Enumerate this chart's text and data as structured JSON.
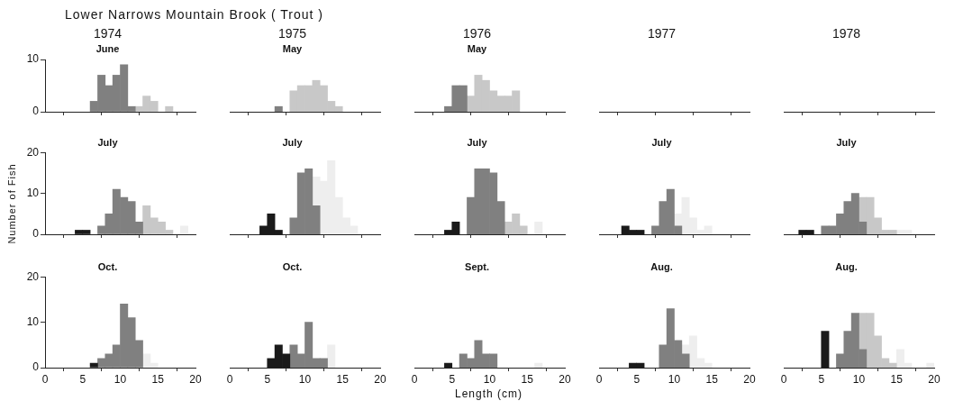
{
  "chart_data": [
    {
      "type": "bar",
      "title": "1974",
      "subtitle": "June",
      "annotations": [
        "Lower Narrows Mountain Brook ( Trout )"
      ],
      "x": [
        6.5,
        7.5,
        8.5,
        9.5,
        10.5,
        11.5,
        12.5,
        13.5,
        14.5,
        15.5,
        16.5
      ],
      "stacked": true,
      "xlim": [
        0,
        20
      ],
      "xticks": [
        0,
        5,
        10,
        15,
        20
      ],
      "ylim": [
        0,
        10
      ],
      "yticks": [
        0,
        10
      ],
      "tick_labels": "y",
      "series": [
        {
          "color": "#808080",
          "values": [
            2,
            7,
            5,
            7,
            9,
            1,
            null,
            null,
            null,
            null,
            null
          ]
        },
        {
          "color": "#c8c8c8",
          "values": [
            null,
            null,
            null,
            null,
            null,
            null,
            1,
            3,
            2,
            null,
            1
          ]
        }
      ]
    },
    {
      "type": "bar",
      "title": "1975",
      "subtitle": "May",
      "x": [
        6.5,
        7.5,
        8.5,
        9.5,
        10.5,
        11.5,
        12.5,
        13.5,
        14.5
      ],
      "stacked": true,
      "xlim": [
        0,
        20
      ],
      "xticks": [
        0,
        5,
        10,
        15,
        20
      ],
      "ylim": [
        0,
        10
      ],
      "tick_labels": false,
      "series": [
        {
          "color": "#808080",
          "values": [
            1,
            null,
            null,
            null,
            null,
            null,
            null,
            null,
            null
          ]
        },
        {
          "color": "#c8c8c8",
          "values": [
            null,
            null,
            4,
            5,
            5,
            6,
            5,
            2,
            1
          ]
        }
      ]
    },
    {
      "type": "bar",
      "title": "1976",
      "subtitle": "May",
      "x": [
        4.5,
        5.5,
        6.5,
        7.5,
        8.5,
        9.5,
        10.5,
        11.5,
        12.5,
        13.5
      ],
      "stacked": true,
      "xlim": [
        0,
        20
      ],
      "xticks": [
        0,
        5,
        10,
        15,
        20
      ],
      "ylim": [
        0,
        10
      ],
      "tick_labels": false,
      "series": [
        {
          "color": "#808080",
          "values": [
            1,
            5,
            5,
            null,
            null,
            null,
            null,
            null,
            null,
            null
          ]
        },
        {
          "color": "#c8c8c8",
          "values": [
            null,
            null,
            null,
            3,
            7,
            6,
            4,
            3,
            3,
            4
          ]
        }
      ]
    },
    {
      "type": "other",
      "title": "1977"
    },
    {
      "type": "other",
      "title": "1978"
    },
    {
      "type": "bar",
      "title": "July",
      "ylabel": "Number of Fish",
      "x": [
        4.5,
        5.5,
        6.5,
        7.5,
        8.5,
        9.5,
        10.5,
        11.5,
        12.5,
        13.5,
        14.5,
        15.5,
        16.5,
        17.5,
        18.5
      ],
      "stacked": true,
      "xlim": [
        0,
        20
      ],
      "xticks": [
        0,
        5,
        10,
        15,
        20
      ],
      "ylim": [
        0,
        20
      ],
      "yticks": [
        0,
        10,
        20
      ],
      "tick_labels": "y",
      "series": [
        {
          "color": "#1a1a1a",
          "values": [
            1,
            1,
            null,
            null,
            null,
            null,
            null,
            null,
            null,
            null,
            null,
            null,
            null,
            null,
            null
          ]
        },
        {
          "color": "#808080",
          "values": [
            null,
            null,
            null,
            2,
            5,
            11,
            9,
            8,
            3,
            null,
            null,
            null,
            null,
            null,
            null
          ]
        },
        {
          "color": "#c8c8c8",
          "values": [
            null,
            null,
            null,
            null,
            null,
            null,
            null,
            null,
            null,
            7,
            4,
            3,
            1,
            null,
            null
          ]
        },
        {
          "color": "#eeeeee",
          "values": [
            null,
            null,
            null,
            null,
            null,
            null,
            null,
            null,
            null,
            null,
            null,
            null,
            null,
            null,
            2
          ]
        }
      ]
    },
    {
      "type": "bar",
      "title": "July",
      "x": [
        4.5,
        5.5,
        6.5,
        7.5,
        8.5,
        9.5,
        10.5,
        11.5,
        12.5,
        13.5,
        14.5,
        15.5,
        16.5
      ],
      "stacked": true,
      "xlim": [
        0,
        20
      ],
      "xticks": [
        0,
        5,
        10,
        15,
        20
      ],
      "ylim": [
        0,
        20
      ],
      "tick_labels": false,
      "series": [
        {
          "color": "#1a1a1a",
          "values": [
            2,
            5,
            1,
            null,
            null,
            null,
            null,
            null,
            null,
            null,
            null,
            null,
            null
          ]
        },
        {
          "color": "#808080",
          "values": [
            null,
            null,
            null,
            null,
            4,
            15,
            16,
            7,
            null,
            null,
            null,
            null,
            null
          ]
        },
        {
          "color": "#eeeeee",
          "values": [
            null,
            null,
            null,
            null,
            null,
            null,
            null,
            7,
            13,
            18,
            9,
            4,
            2
          ]
        }
      ]
    },
    {
      "type": "bar",
      "title": "July",
      "x": [
        4.5,
        5.5,
        6.5,
        7.5,
        8.5,
        9.5,
        10.5,
        11.5,
        12.5,
        13.5,
        14.5,
        15.5,
        16.5
      ],
      "stacked": true,
      "xlim": [
        0,
        20
      ],
      "xticks": [
        0,
        5,
        10,
        15,
        20
      ],
      "ylim": [
        0,
        20
      ],
      "tick_labels": false,
      "series": [
        {
          "color": "#1a1a1a",
          "values": [
            1,
            3,
            null,
            null,
            null,
            null,
            null,
            null,
            null,
            null,
            null,
            null,
            null
          ]
        },
        {
          "color": "#808080",
          "values": [
            null,
            null,
            null,
            9,
            16,
            16,
            15,
            8,
            null,
            null,
            null,
            null,
            null
          ]
        },
        {
          "color": "#c8c8c8",
          "values": [
            null,
            null,
            null,
            null,
            null,
            null,
            null,
            null,
            3,
            5,
            2,
            null,
            null
          ]
        },
        {
          "color": "#eeeeee",
          "values": [
            null,
            null,
            null,
            null,
            null,
            null,
            null,
            null,
            null,
            null,
            null,
            null,
            3
          ]
        }
      ]
    },
    {
      "type": "bar",
      "title": "July",
      "x": [
        3.5,
        4.5,
        5.5,
        6.5,
        7.5,
        8.5,
        9.5,
        10.5,
        11.5,
        12.5,
        13.5,
        14.5
      ],
      "stacked": true,
      "xlim": [
        0,
        20
      ],
      "xticks": [
        0,
        5,
        10,
        15,
        20
      ],
      "ylim": [
        0,
        20
      ],
      "tick_labels": false,
      "series": [
        {
          "color": "#1a1a1a",
          "values": [
            2,
            1,
            1,
            null,
            null,
            null,
            null,
            null,
            null,
            null,
            null,
            null
          ]
        },
        {
          "color": "#808080",
          "values": [
            null,
            null,
            null,
            null,
            2,
            8,
            11,
            2,
            null,
            null,
            null,
            null
          ]
        },
        {
          "color": "#eeeeee",
          "values": [
            null,
            null,
            null,
            null,
            null,
            null,
            null,
            3,
            9,
            4,
            1,
            2
          ]
        }
      ]
    },
    {
      "type": "bar",
      "title": "July",
      "x": [
        2.5,
        3.5,
        4.5,
        5.5,
        6.5,
        7.5,
        8.5,
        9.5,
        10.5,
        11.5,
        12.5,
        13.5,
        14.5,
        15.5,
        16.5
      ],
      "stacked": true,
      "xlim": [
        0,
        20
      ],
      "xticks": [
        0,
        5,
        10,
        15,
        20
      ],
      "ylim": [
        0,
        20
      ],
      "tick_labels": false,
      "series": [
        {
          "color": "#1a1a1a",
          "values": [
            1,
            1,
            null,
            null,
            null,
            null,
            null,
            null,
            null,
            null,
            null,
            null,
            null,
            null,
            null
          ]
        },
        {
          "color": "#808080",
          "values": [
            null,
            null,
            null,
            2,
            2,
            5,
            8,
            10,
            3,
            null,
            null,
            null,
            null,
            null,
            null
          ]
        },
        {
          "color": "#c8c8c8",
          "values": [
            null,
            null,
            null,
            null,
            null,
            null,
            null,
            null,
            6,
            9,
            4,
            1,
            1,
            null,
            null
          ]
        },
        {
          "color": "#eeeeee",
          "values": [
            null,
            null,
            null,
            null,
            null,
            null,
            null,
            null,
            null,
            null,
            null,
            null,
            null,
            1,
            1
          ]
        }
      ]
    },
    {
      "type": "bar",
      "title": "Oct.",
      "x": [
        6.5,
        7.5,
        8.5,
        9.5,
        10.5,
        11.5,
        12.5,
        13.5,
        14.5
      ],
      "stacked": true,
      "xlim": [
        0,
        20
      ],
      "xticks": [
        0,
        5,
        10,
        15,
        20
      ],
      "ylim": [
        0,
        20
      ],
      "yticks": [
        0,
        10,
        20
      ],
      "series": [
        {
          "color": "#1a1a1a",
          "values": [
            1,
            null,
            null,
            null,
            null,
            null,
            null,
            null,
            null
          ]
        },
        {
          "color": "#808080",
          "values": [
            null,
            2,
            3,
            5,
            14,
            11,
            6,
            null,
            null
          ]
        },
        {
          "color": "#eeeeee",
          "values": [
            null,
            null,
            null,
            null,
            null,
            null,
            null,
            3,
            1
          ]
        }
      ]
    },
    {
      "type": "bar",
      "title": "Oct.",
      "x": [
        5.5,
        6.5,
        7.5,
        8.5,
        9.5,
        10.5,
        11.5,
        12.5,
        13.5
      ],
      "stacked": true,
      "xlim": [
        0,
        20
      ],
      "xticks": [
        0,
        5,
        10,
        15,
        20
      ],
      "ylim": [
        0,
        20
      ],
      "tick_labels": "x",
      "series": [
        {
          "color": "#1a1a1a",
          "values": [
            2,
            5,
            3,
            null,
            null,
            null,
            null,
            null,
            null
          ]
        },
        {
          "color": "#808080",
          "values": [
            null,
            null,
            null,
            5,
            3,
            10,
            2,
            2,
            null
          ]
        },
        {
          "color": "#eeeeee",
          "values": [
            null,
            null,
            null,
            null,
            null,
            null,
            null,
            null,
            5
          ]
        }
      ]
    },
    {
      "type": "bar",
      "title": "Sept.",
      "xlabel": "Length (cm)",
      "x": [
        4.5,
        5.5,
        6.5,
        7.5,
        8.5,
        9.5,
        10.5,
        11.5,
        12.5,
        13.5,
        14.5,
        15.5,
        16.5
      ],
      "stacked": true,
      "xlim": [
        0,
        20
      ],
      "xticks": [
        0,
        5,
        10,
        15,
        20
      ],
      "ylim": [
        0,
        20
      ],
      "tick_labels": "x",
      "series": [
        {
          "color": "#1a1a1a",
          "values": [
            1,
            null,
            null,
            null,
            null,
            null,
            null,
            null,
            null,
            null,
            null,
            null,
            null
          ]
        },
        {
          "color": "#808080",
          "values": [
            null,
            null,
            3,
            2,
            6,
            3,
            3,
            null,
            null,
            null,
            null,
            null,
            null
          ]
        },
        {
          "color": "#eeeeee",
          "values": [
            null,
            null,
            null,
            null,
            null,
            null,
            null,
            null,
            null,
            null,
            null,
            null,
            1
          ]
        }
      ]
    },
    {
      "type": "bar",
      "title": "Aug.",
      "x": [
        4.5,
        5.5,
        6.5,
        7.5,
        8.5,
        9.5,
        10.5,
        11.5,
        12.5,
        13.5,
        14.5
      ],
      "stacked": true,
      "xlim": [
        0,
        20
      ],
      "xticks": [
        0,
        5,
        10,
        15,
        20
      ],
      "ylim": [
        0,
        20
      ],
      "tick_labels": "x",
      "series": [
        {
          "color": "#1a1a1a",
          "values": [
            1,
            1,
            null,
            null,
            null,
            null,
            null,
            null,
            null,
            null,
            null
          ]
        },
        {
          "color": "#808080",
          "values": [
            null,
            null,
            null,
            null,
            5,
            13,
            6,
            3,
            null,
            null,
            null
          ]
        },
        {
          "color": "#eeeeee",
          "values": [
            null,
            null,
            null,
            null,
            null,
            null,
            null,
            2,
            7,
            2,
            1
          ]
        }
      ]
    },
    {
      "type": "bar",
      "title": "Aug.",
      "x": [
        5.5,
        6.5,
        7.5,
        8.5,
        9.5,
        10.5,
        11.5,
        12.5,
        13.5,
        14.5,
        15.5,
        16.5,
        17.5,
        18.5,
        19.5
      ],
      "stacked": true,
      "xlim": [
        0,
        20
      ],
      "xticks": [
        0,
        5,
        10,
        15,
        20
      ],
      "ylim": [
        0,
        20
      ],
      "tick_labels": "x",
      "series": [
        {
          "color": "#1a1a1a",
          "values": [
            8,
            null,
            null,
            null,
            null,
            null,
            null,
            null,
            null,
            null,
            null,
            null,
            null,
            null,
            null
          ]
        },
        {
          "color": "#808080",
          "values": [
            null,
            null,
            3,
            8,
            12,
            4,
            null,
            null,
            null,
            null,
            null,
            null,
            null,
            null,
            null
          ]
        },
        {
          "color": "#c8c8c8",
          "values": [
            null,
            null,
            null,
            null,
            null,
            8,
            12,
            7,
            2,
            1,
            null,
            null,
            null,
            null,
            null
          ]
        },
        {
          "color": "#eeeeee",
          "values": [
            null,
            null,
            null,
            null,
            null,
            null,
            null,
            null,
            null,
            null,
            4,
            1,
            null,
            null,
            1
          ]
        }
      ]
    }
  ]
}
